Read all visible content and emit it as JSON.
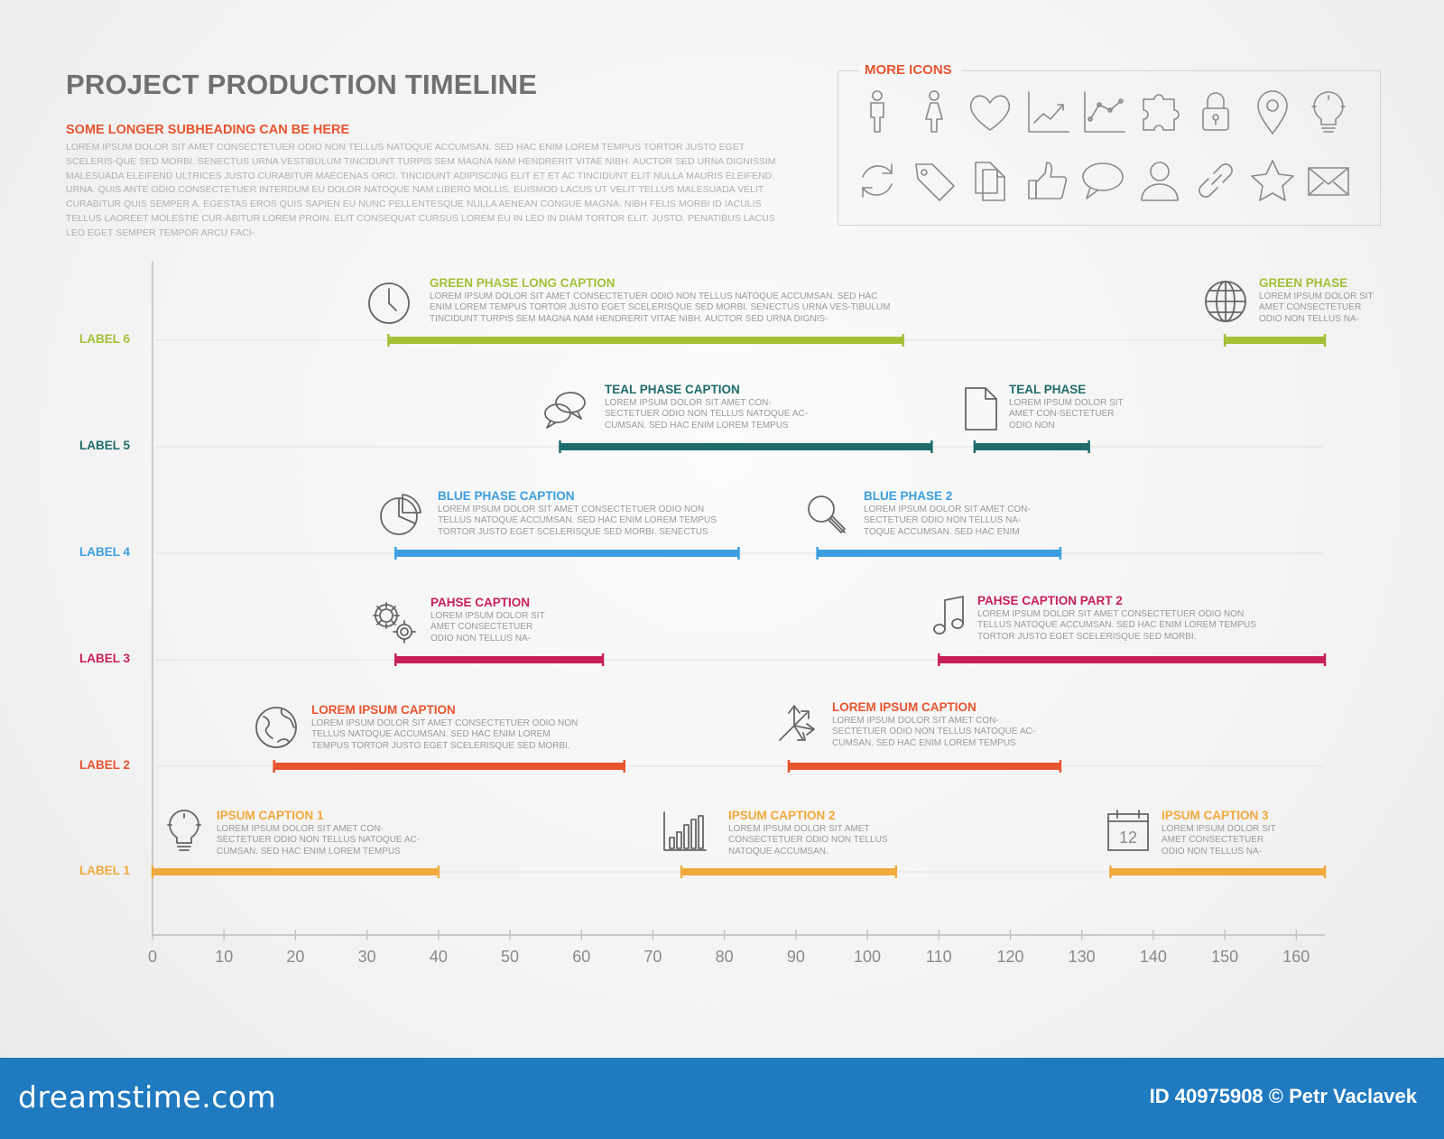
{
  "header": {
    "title": "PROJECT PRODUCTION TIMELINE",
    "subheading": "SOME LONGER SUBHEADING CAN BE HERE",
    "intro": "LOREM IPSUM DOLOR SIT AMET CONSECTETUER ODIO NON TELLUS NATOQUE ACCUMSAN. SED HAC ENIM LOREM TEMPUS TORTOR JUSTO EGET SCELERIS-QUE SED MORBI. SENECTUS URNA VESTIBULUM TINCIDUNT TURPIS SEM MAGNA NAM HENDRERIT VITAE NIBH. AUCTOR SED URNA DIGNISSIM MALESUADA ELEIFEND ULTRICES JUSTO CURABITUR MAECENAS ORCI. TINCIDUNT ADIPISCING ELIT ET ET AC TINCIDUNT ELIT NULLA MAURIS ELEIFEND. URNA. QUIS ANTE ODIO CONSECTETUER INTERDUM EU DOLOR NATOQUE NAM LIBERO MOLLIS. EUISMOD LACUS UT VELIT TELLUS MALESUADA VELIT CURABITUR QUIS SEMPER A. EGESTAS EROS QUIS SAPIEN EU NUNC PELLENTESQUE NULLA AENEAN CONGUE MAGNA. NIBH FELIS MORBI ID IACULIS TELLUS LAOREET MOLESTIE CUR-ABITUR LOREM PROIN. ELIT CONSEQUAT CURSUS LOREM EU IN LEO IN DIAM TORTOR ELIT. JUSTO. PENATIBUS LACUS LEO EGET SEMPER TEMPOR ARCU FACI-"
  },
  "icons_panel": {
    "title": "MORE ICONS",
    "icons": [
      "man-icon",
      "woman-icon",
      "heart-icon",
      "line-chart-icon",
      "scatter-chart-icon",
      "puzzle-icon",
      "lock-icon",
      "location-pin-icon",
      "light-bulb-icon",
      "refresh-icon",
      "tag-icon",
      "documents-icon",
      "thumbs-up-icon",
      "speech-bubble-icon",
      "user-icon",
      "link-icon",
      "star-icon",
      "envelope-icon"
    ]
  },
  "colors": {
    "green": "#a3c037",
    "teal": "#1f6b6b",
    "blue": "#3b9ee0",
    "magenta": "#c81e5a",
    "orange": "#e8542f",
    "yellow": "#f2a93b"
  },
  "chart_data": {
    "type": "gantt",
    "title": "PROJECT PRODUCTION TIMELINE",
    "xlim": [
      0,
      164
    ],
    "x_ticks": [
      0,
      10,
      20,
      30,
      40,
      50,
      60,
      70,
      80,
      90,
      100,
      110,
      120,
      130,
      140,
      150,
      160
    ],
    "rows": [
      {
        "label": "LABEL 6",
        "color": "#a3c037",
        "phases": [
          {
            "title": "GREEN PHASE LONG CAPTION",
            "icon": "clock-icon",
            "start": 33,
            "end": 105,
            "desc": "LOREM IPSUM DOLOR SIT AMET CONSECTETUER ODIO NON TELLUS NATOQUE ACCUMSAN. SED HAC ENIM LOREM TEMPUS TORTOR JUSTO EGET SCELERISQUE SED MORBI. SENECTUS URNA VES-TIBULUM TINCIDUNT TURPIS SEM MAGNA NAM HENDRERIT VITAE NIBH. AUCTOR SED URNA DIGNIS-"
          },
          {
            "title": "GREEN PHASE",
            "icon": "globe-grid-icon",
            "start": 150,
            "end": 164,
            "desc": "LOREM IPSUM DOLOR SIT AMET CONSECTETUER ODIO NON TELLUS NA-"
          }
        ]
      },
      {
        "label": "LABEL 5",
        "color": "#1f6b6b",
        "phases": [
          {
            "title": "TEAL PHASE CAPTION",
            "icon": "chat-icon",
            "start": 57,
            "end": 109,
            "desc": "LOREM IPSUM DOLOR SIT AMET CON-SECTETUER ODIO NON TELLUS NATOQUE AC-CUMSAN. SED HAC ENIM LOREM TEMPUS"
          },
          {
            "title": "TEAL PHASE",
            "icon": "document-icon",
            "start": 115,
            "end": 131,
            "desc": "LOREM IPSUM DOLOR SIT AMET CON-SECTETUER ODIO NON"
          }
        ]
      },
      {
        "label": "LABEL 4",
        "color": "#3b9ee0",
        "phases": [
          {
            "title": "BLUE PHASE CAPTION",
            "icon": "pie-chart-icon",
            "start": 34,
            "end": 82,
            "desc": "LOREM IPSUM DOLOR SIT AMET CONSECTETUER ODIO NON TELLUS NATOQUE ACCUMSAN. SED HAC ENIM LOREM TEMPUS TORTOR JUSTO EGET SCELERISQUE SED MORBI. SENECTUS"
          },
          {
            "title": "BLUE PHASE 2",
            "icon": "magnifier-icon",
            "start": 93,
            "end": 127,
            "desc": "LOREM IPSUM DOLOR SIT AMET CON-SECTETUER ODIO NON TELLUS NA-TOQUE ACCUMSAN. SED HAC ENIM"
          }
        ]
      },
      {
        "label": "LABEL 3",
        "color": "#c81e5a",
        "phases": [
          {
            "title": "PAHSE CAPTION",
            "icon": "gears-icon",
            "start": 34,
            "end": 63,
            "desc": "LOREM IPSUM DOLOR SIT AMET CONSECTETUER ODIO NON TELLUS NA-"
          },
          {
            "title": "PAHSE CAPTION PART 2",
            "icon": "music-note-icon",
            "start": 110,
            "end": 164,
            "desc": "LOREM IPSUM DOLOR SIT AMET CONSECTETUER ODIO NON TELLUS NATOQUE ACCUMSAN. SED HAC ENIM LOREM TEMPUS TORTOR JUSTO EGET SCELERISQUE SED MORBI."
          }
        ]
      },
      {
        "label": "LABEL 2",
        "color": "#e8542f",
        "phases": [
          {
            "title": "LOREM IPSUM CAPTION",
            "icon": "earth-icon",
            "start": 17,
            "end": 66,
            "desc": "LOREM IPSUM DOLOR SIT AMET CONSECTETUER ODIO NON TELLUS NATOQUE ACCUMSAN. SED HAC ENIM LOREM TEMPUS TORTOR JUSTO EGET SCELERISQUE SED MORBI."
          },
          {
            "title": "LOREM IPSUM CAPTION",
            "icon": "arrows-split-icon",
            "start": 89,
            "end": 127,
            "desc": "LOREM IPSUM DOLOR SIT AMET CON-SECTETUER ODIO NON TELLUS NATOQUE AC-CUMSAN. SED HAC ENIM LOREM TEMPUS"
          }
        ]
      },
      {
        "label": "LABEL 1",
        "color": "#f2a93b",
        "phases": [
          {
            "title": "IPSUM CAPTION 1",
            "icon": "light-bulb-icon",
            "start": 0,
            "end": 40,
            "desc": "LOREM IPSUM DOLOR SIT AMET CON-SECTETUER ODIO NON TELLUS NATOQUE AC-CUMSAN. SED HAC ENIM LOREM TEMPUS"
          },
          {
            "title": "IPSUM CAPTION 2",
            "icon": "bar-chart-icon",
            "start": 74,
            "end": 104,
            "desc": "LOREM IPSUM DOLOR SIT AMET CONSECTETUER ODIO NON TELLUS NATOQUE ACCUMSAN."
          },
          {
            "title": "IPSUM CAPTION 3",
            "icon": "calendar-icon",
            "start": 134,
            "end": 164,
            "desc": "LOREM IPSUM DOLOR SIT AMET CONSECTETUER ODIO NON TELLUS NA-"
          }
        ]
      }
    ]
  },
  "footer": {
    "logo": "dreamstime.com",
    "credit": "ID 40975908 © Petr Vaclavek"
  }
}
